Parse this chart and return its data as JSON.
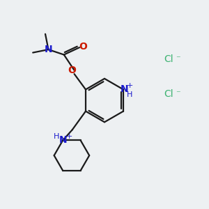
{
  "bg_color": "#edf0f2",
  "bond_color": "#1a1a1a",
  "N_color": "#1a1acc",
  "O_color": "#cc1a00",
  "Cl_color": "#3cb371",
  "fig_size": [
    3.0,
    3.0
  ],
  "dpi": 100,
  "xlim": [
    0,
    10
  ],
  "ylim": [
    0,
    10
  ]
}
